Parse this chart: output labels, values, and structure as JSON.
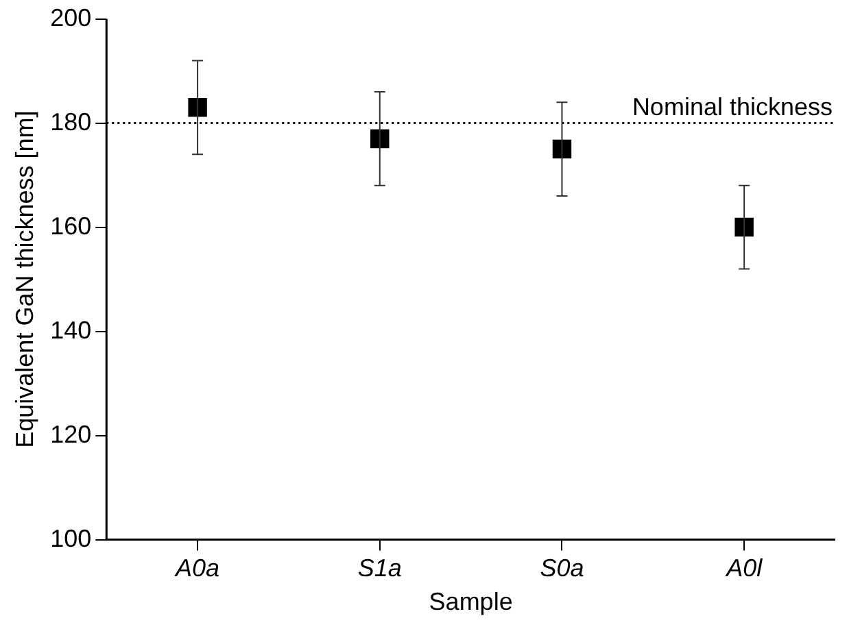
{
  "chart_data": {
    "type": "scatter",
    "xlabel": "Sample",
    "ylabel": "Equivalent GaN thickness [nm]",
    "categories": [
      "A0a",
      "S1a",
      "S0a",
      "A0l"
    ],
    "values": [
      183,
      177,
      175,
      160
    ],
    "errors": [
      9,
      9,
      9,
      8
    ],
    "color": "#000000",
    "marker": "square",
    "ylim": [
      100,
      200
    ],
    "yticks": [
      100,
      120,
      140,
      160,
      180,
      200
    ],
    "ref_lines": [
      {
        "axis": "y",
        "value": 180,
        "label": "Nominal thickness",
        "color": "#000000",
        "line_style": "dotted"
      }
    ],
    "grid": false,
    "legend": false
  }
}
